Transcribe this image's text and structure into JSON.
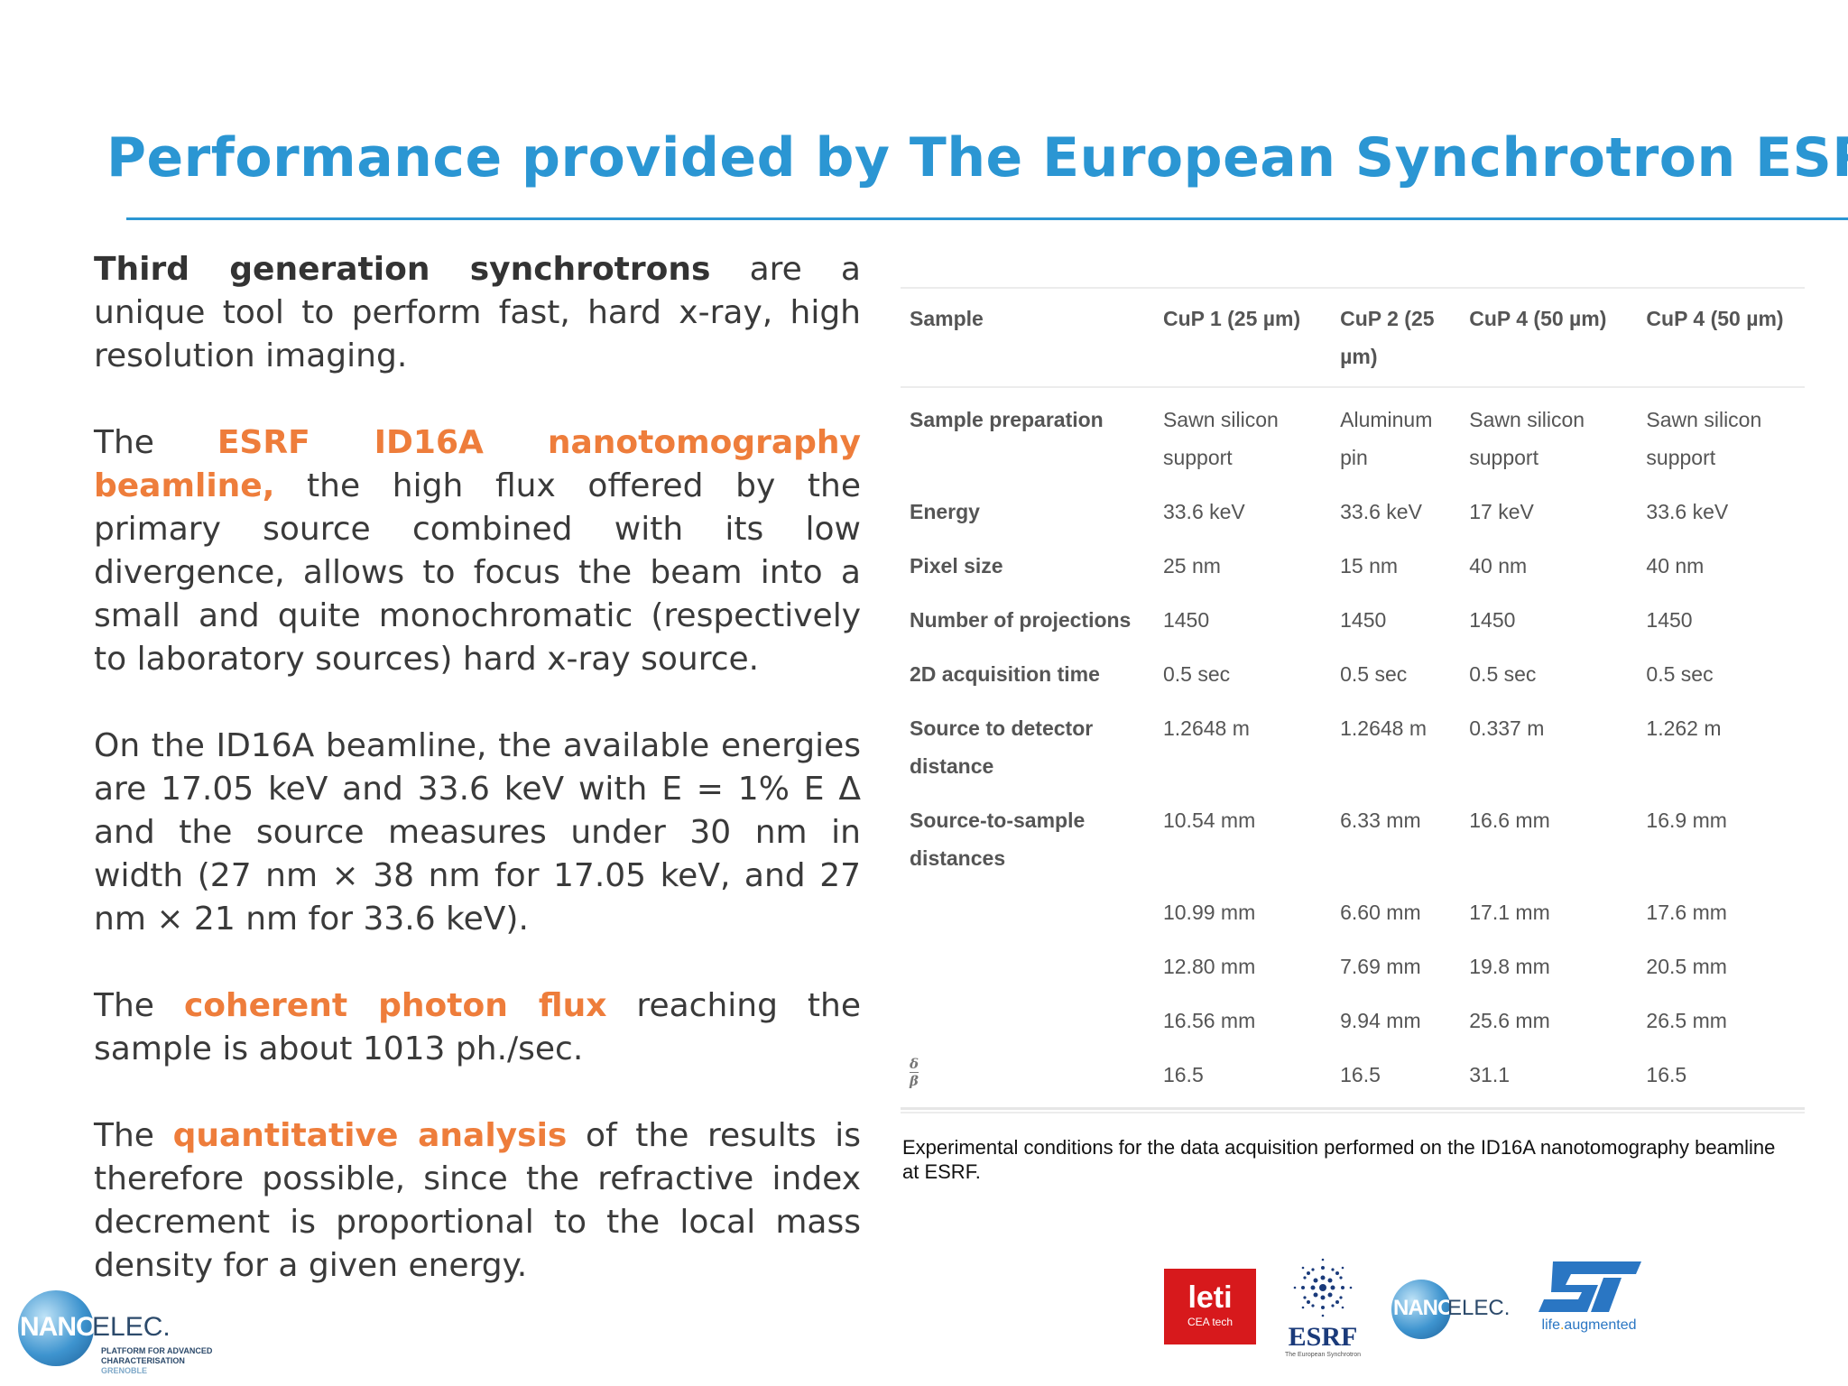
{
  "title": "Performance provided by The European Synchrotron ESRF",
  "left": {
    "p1": {
      "strong": "Third generation synchrotrons",
      "rest": " are a unique tool to perform fast, hard x-ray, high resolution imaging."
    },
    "p2": {
      "pre": "The ",
      "highlight": "ESRF ID16A nanotomography beamline,",
      "rest": " the high flux offered by the primary  source combined with its low divergence, allows to focus the beam into a small and quite monochromatic (respectively to laboratory sources) hard x-ray source."
    },
    "p3": "On the ID16A beamline, the available energies are 17.05 keV and 33.6 keV with E = 1% E Δ and the source measures under 30 nm in width (27 nm × 38 nm for 17.05 keV, and 27 nm × 21 nm for 33.6 keV).",
    "p4": {
      "pre": "The ",
      "highlight": "coherent photon flux",
      "rest": " reaching the sample is about 1013 ph./sec."
    },
    "p5": {
      "pre": "The ",
      "highlight": "quantitative analysis",
      "rest": " of the results is therefore possible, since the refractive index decrement is proportional to the local mass density for a given energy."
    }
  },
  "table": {
    "headers": [
      "Sample",
      "CuP 1 (25 µm)",
      "CuP 2 (25 µm)",
      "CuP 4 (50 µm)",
      "CuP 4 (50 µm)"
    ],
    "rows": [
      [
        "Sample preparation",
        "Sawn silicon support",
        "Aluminum pin",
        "Sawn silicon support",
        "Sawn silicon support"
      ],
      [
        "Energy",
        "33.6 keV",
        "33.6 keV",
        "17 keV",
        "33.6 keV"
      ],
      [
        "Pixel size",
        "25 nm",
        "15 nm",
        "40 nm",
        "40 nm"
      ],
      [
        "Number of projections",
        "1450",
        "1450",
        "1450",
        "1450"
      ],
      [
        "2D acquisition time",
        "0.5 sec",
        "0.5 sec",
        "0.5 sec",
        "0.5 sec"
      ],
      [
        "Source to detector distance",
        "1.2648 m",
        "1.2648 m",
        "0.337 m",
        "1.262 m"
      ],
      [
        "Source-to-sample distances",
        "10.54 mm",
        "6.33 mm",
        "16.6 mm",
        "16.9 mm"
      ],
      [
        "",
        "10.99 mm",
        "6.60 mm",
        "17.1 mm",
        "17.6 mm"
      ],
      [
        "",
        "12.80 mm",
        "7.69 mm",
        "19.8 mm",
        "20.5 mm"
      ],
      [
        "",
        "16.56 mm",
        "9.94 mm",
        "25.6 mm",
        "26.5 mm"
      ]
    ],
    "ratio_row": {
      "num": "δ",
      "den": "β",
      "values": [
        "16.5",
        "16.5",
        "31.1",
        "16.5"
      ]
    }
  },
  "caption": "Experimental conditions for the data acquisition performed on the ID16A nanotomography beamline at ESRF.",
  "logos": {
    "nanoelec_left": {
      "nano": "NANO",
      "elec": "ELEC.",
      "sub1": "PLATFORM FOR ADVANCED",
      "sub2": "CHARACTERISATION",
      "sub3": "GRENOBLE"
    },
    "leti": {
      "word": "leti",
      "sub": "CEA tech"
    },
    "esrf": {
      "word": "ESRF",
      "sub": "The European Synchrotron"
    },
    "nanoelec_right": {
      "nano": "NANO",
      "elec": "ELEC."
    },
    "st": {
      "tag_pre": "life",
      "tag_dot": ".",
      "tag_post": "augmented"
    }
  },
  "colors": {
    "title": "#2b96d3",
    "highlight": "#ee7d3b",
    "leti_red": "#d7191c",
    "esrf_blue": "#1a3a7a",
    "st_blue": "#2a76c3"
  }
}
